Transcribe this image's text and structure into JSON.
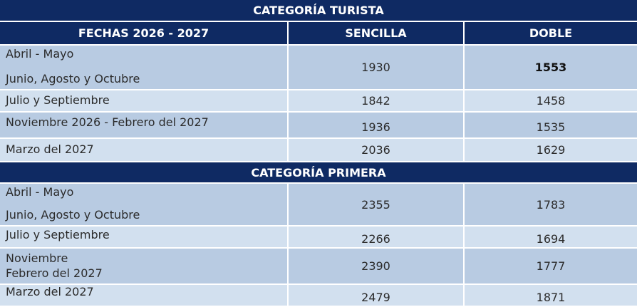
{
  "colors": {
    "header_bg": "#0f2a63",
    "row_dark": "#b8cbe2",
    "row_light": "#d2e0ef",
    "text": "#2b2b2b"
  },
  "turista": {
    "title": "CATEGORÍA TURISTA",
    "headers": {
      "fechas": "FECHAS 2026 - 2027",
      "sencilla": "SENCILLA",
      "doble": "DOBLE"
    },
    "rows": [
      {
        "lines": [
          "Abril - Mayo",
          "Junio,  Agosto y Octubre"
        ],
        "sencilla": "1930",
        "doble": "1553"
      },
      {
        "lines": [
          "Julio y Septiembre"
        ],
        "sencilla": "1842",
        "doble": "1458"
      },
      {
        "lines": [
          "Noviembre 2026 - Febrero del 2027"
        ],
        "sencilla": "1936",
        "doble": "1535"
      },
      {
        "lines": [
          "Marzo del 2027"
        ],
        "sencilla": "2036",
        "doble": "1629"
      }
    ]
  },
  "primera": {
    "title": "CATEGORÍA PRIMERA",
    "rows": [
      {
        "lines": [
          "Abril - Mayo",
          "Junio,  Agosto y Octubre"
        ],
        "sencilla": "2355",
        "doble": "1783"
      },
      {
        "lines": [
          "Julio y Septiembre"
        ],
        "sencilla": "2266",
        "doble": "1694"
      },
      {
        "lines": [
          "Noviembre",
          "Febrero del 2027"
        ],
        "sencilla": "2390",
        "doble": "1777"
      },
      {
        "lines": [
          "Marzo del 2027"
        ],
        "sencilla": "2479",
        "doble": "1871"
      }
    ]
  }
}
